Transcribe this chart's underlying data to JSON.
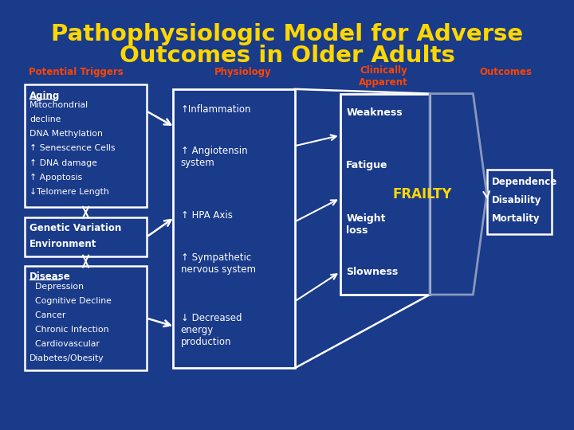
{
  "title_line1": "Pathophysiologic Model for Adverse",
  "title_line2": "Outcomes in Older Adults",
  "title_color": "#FFD700",
  "background_color": "#1a3a8a",
  "header_potential": "Potential Triggers",
  "header_physiology": "Physiology",
  "header_clinically": "Clinically\nApparent",
  "header_outcomes": "Outcomes",
  "header_color": "#FF4500",
  "box1_title": "Aging",
  "box1_lines": [
    "Mitochondrial",
    "decline",
    "DNA Methylation",
    "↑ Senescence Cells",
    "↑ DNA damage",
    "↑ Apoptosis",
    "↓Telomere Length"
  ],
  "box2_lines": [
    "Genetic Variation",
    "Environment"
  ],
  "box3_title": "Disease",
  "box3_lines": [
    "  Depression",
    "  Cognitive Decline",
    "  Cancer",
    "  Chronic Infection",
    "  Cardiovascular",
    "Diabetes/Obesity"
  ],
  "phys_items": [
    [
      "↑Inflammation",
      0
    ],
    [
      "↑ Angiotensin\nsystem",
      1
    ],
    [
      "↑ HPA Axis",
      2
    ],
    [
      "↑ Sympathetic\nnervous system",
      3
    ],
    [
      "↓ Decreased\nenergy\nproduction",
      4
    ]
  ],
  "clin_items": [
    "Weakness",
    "Fatigue",
    "Weight\nloss",
    "Slowness"
  ],
  "frailty_text": "FRAILTY",
  "frailty_color": "#FFD700",
  "outcomes_lines": [
    "Dependence",
    "Disability",
    "Mortality"
  ],
  "white": "#FFFFFF",
  "chevron_color": "#8899bb",
  "dark_bg": "#0a2070"
}
